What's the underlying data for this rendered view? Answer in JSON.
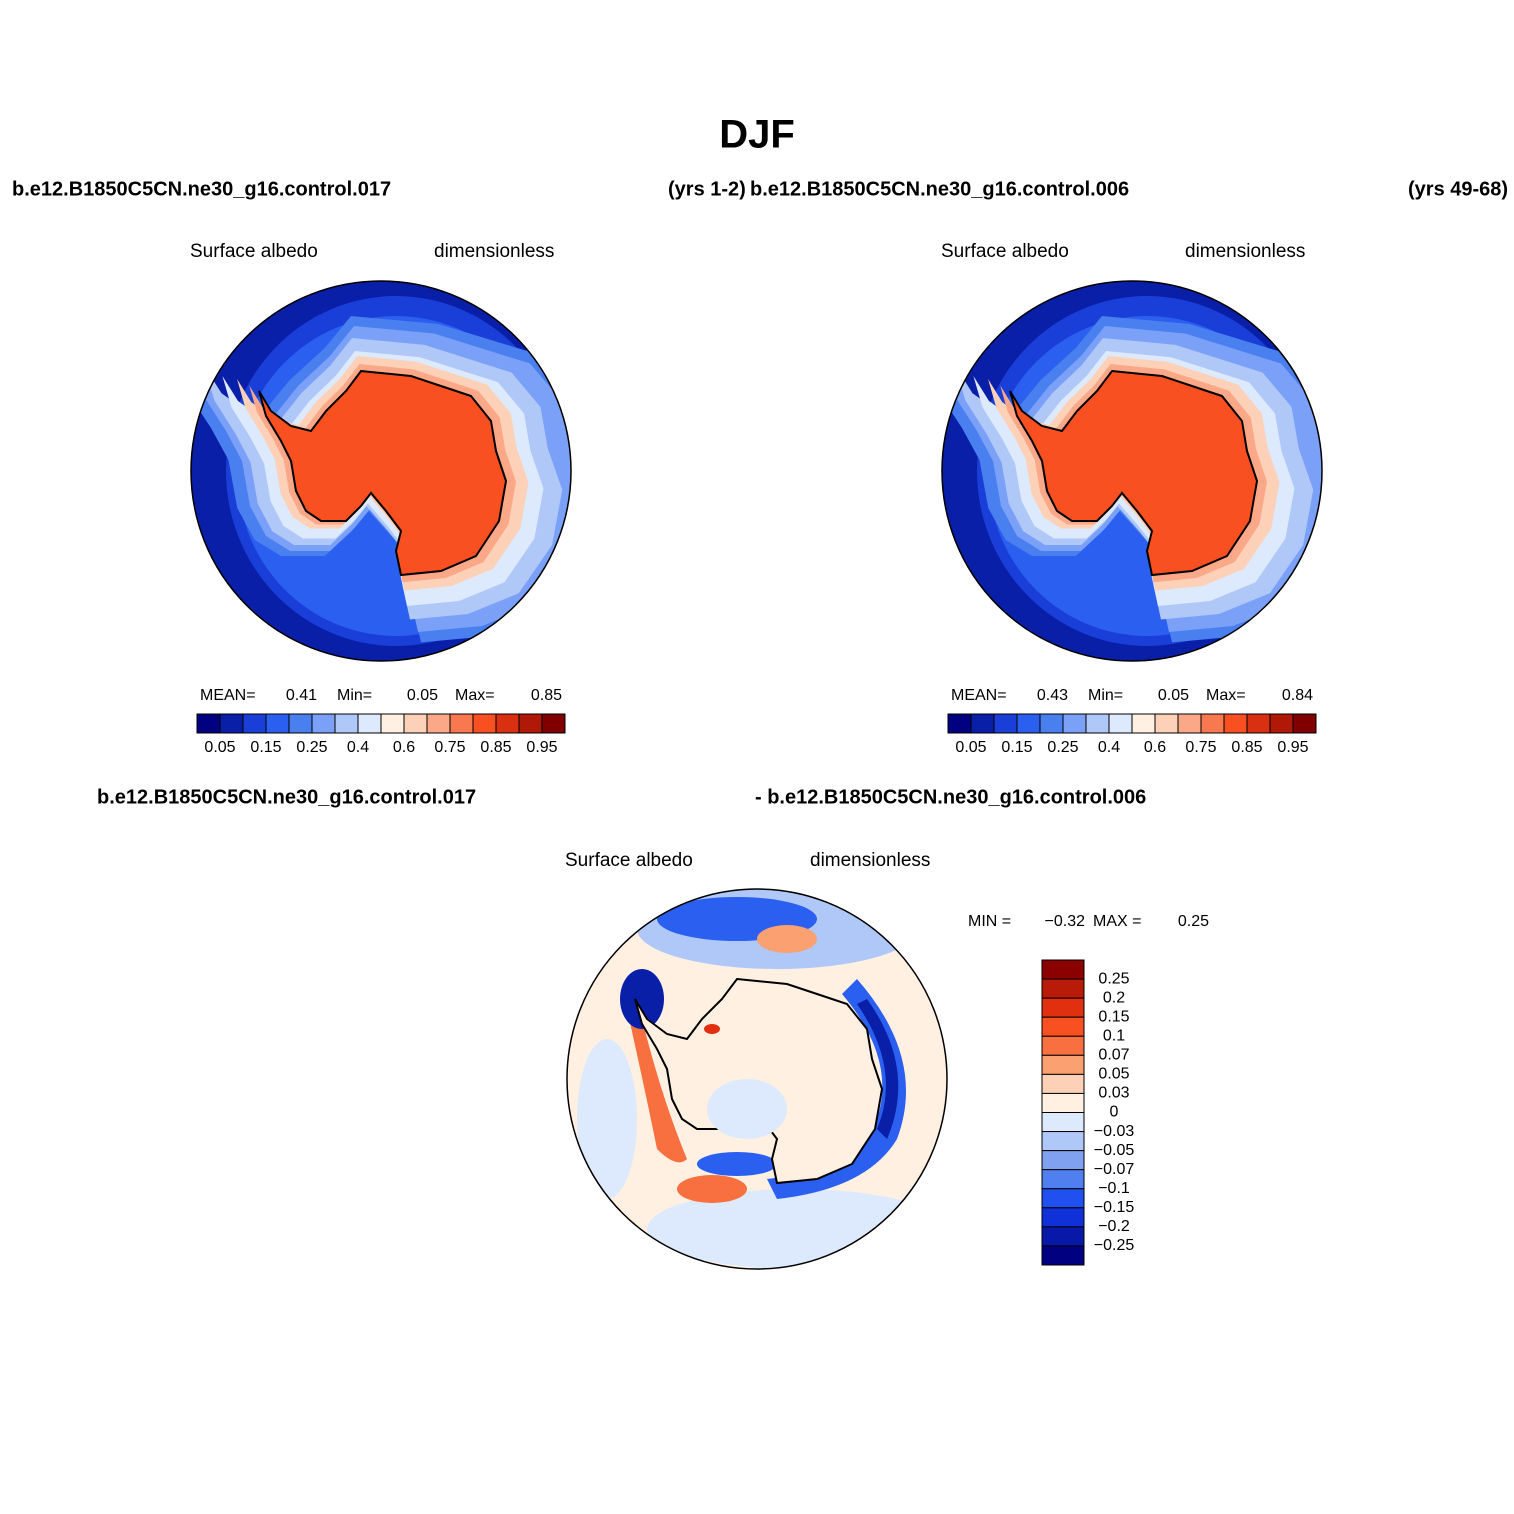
{
  "title": "DJF",
  "header": {
    "left": "b.e12.B1850C5CN.ne30_g16.control.017",
    "middle_years": "(yrs 1-2)",
    "middle_case": "b.e12.B1850C5CN.ne30_g16.control.006",
    "right_years": "(yrs 49-68)"
  },
  "panels": [
    {
      "variable": "Surface albedo",
      "units": "dimensionless",
      "stats": {
        "mean_label": "MEAN=",
        "mean": 0.41,
        "min_label": "Min=",
        "min": 0.05,
        "max_label": "Max=",
        "max": 0.85
      },
      "colorbar": {
        "colors": [
          "#000080",
          "#0a1fa8",
          "#1a3fd8",
          "#2a5ff0",
          "#4a7ff0",
          "#7aa0f8",
          "#b0c8f8",
          "#dde9fc",
          "#fff0e2",
          "#fdd0b8",
          "#fba888",
          "#f87850",
          "#f85020",
          "#d83010",
          "#b01808",
          "#800000"
        ],
        "labels": [
          0.05,
          0.15,
          0.25,
          0.4,
          0.6,
          0.75,
          0.85,
          0.95
        ]
      }
    },
    {
      "variable": "Surface albedo",
      "units": "dimensionless",
      "stats": {
        "mean_label": "MEAN=",
        "mean": 0.43,
        "min_label": "Min=",
        "min": 0.05,
        "max_label": "Max=",
        "max": 0.84
      },
      "colorbar": {
        "colors": [
          "#000080",
          "#0a1fa8",
          "#1a3fd8",
          "#2a5ff0",
          "#4a7ff0",
          "#7aa0f8",
          "#b0c8f8",
          "#dde9fc",
          "#fff0e2",
          "#fdd0b8",
          "#fba888",
          "#f87850",
          "#f85020",
          "#d83010",
          "#b01808",
          "#800000"
        ],
        "labels": [
          0.05,
          0.15,
          0.25,
          0.4,
          0.6,
          0.75,
          0.85,
          0.95
        ]
      }
    }
  ],
  "difference": {
    "header_left": "b.e12.B1850C5CN.ne30_g16.control.017",
    "header_right": "- b.e12.B1850C5CN.ne30_g16.control.006",
    "variable": "Surface albedo",
    "units": "dimensionless",
    "stats": {
      "min_label": "MIN =",
      "min": "−0.32",
      "max_label": "MAX =",
      "max": 0.25
    },
    "colorbar": {
      "colors": [
        "#8b0000",
        "#b81c08",
        "#e03010",
        "#f85020",
        "#f87040",
        "#fba070",
        "#fdd0b8",
        "#fff0e2",
        "#dde9fc",
        "#b0c8f8",
        "#80a0f0",
        "#5080f0",
        "#2050f0",
        "#1030d8",
        "#0818a8",
        "#000080"
      ],
      "labels": [
        "0.25",
        "0.2",
        "0.15",
        "0.1",
        "0.07",
        "0.05",
        "0.03",
        "0",
        "−0.03",
        "−0.05",
        "−0.07",
        "−0.1",
        "−0.15",
        "−0.2",
        "−0.25"
      ]
    }
  }
}
